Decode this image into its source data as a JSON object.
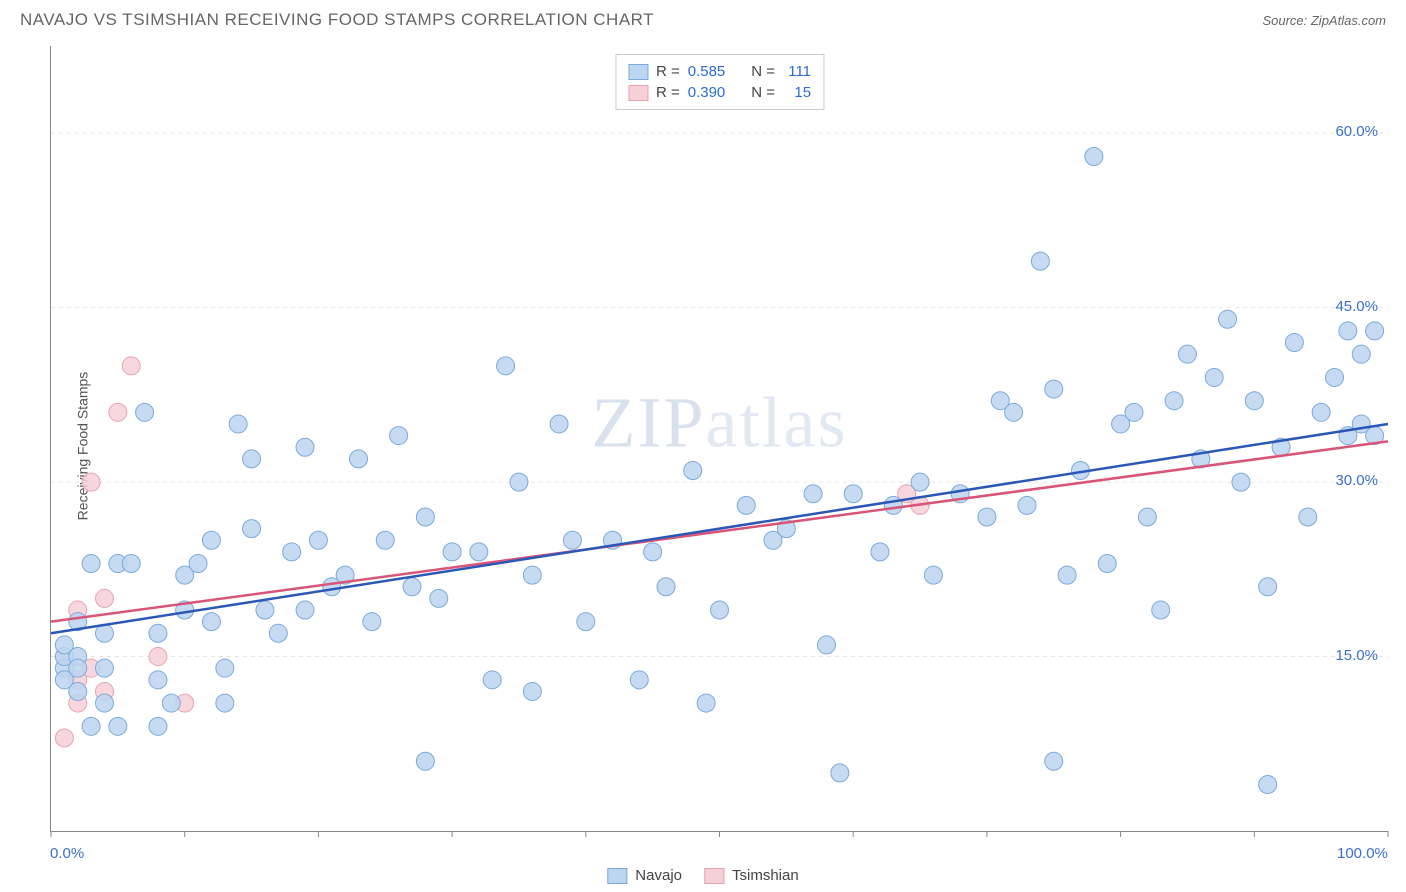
{
  "chart": {
    "type": "scatter",
    "title": "NAVAJO VS TSIMSHIAN RECEIVING FOOD STAMPS CORRELATION CHART",
    "source": "Source: ZipAtlas.com",
    "ylabel": "Receiving Food Stamps",
    "watermark": "ZIPatlas",
    "background_color": "#ffffff",
    "grid_color": "#e5e5e5",
    "axis_color": "#888888",
    "tick_label_color": "#3b6fc9",
    "xlim": [
      0,
      100
    ],
    "ylim": [
      0,
      67.5
    ],
    "xticks": [
      0,
      10,
      20,
      30,
      40,
      50,
      60,
      70,
      80,
      90,
      100
    ],
    "xtick_labels": {
      "0": "0.0%",
      "100": "100.0%"
    },
    "yticks": [
      15,
      30,
      45,
      60
    ],
    "ytick_labels": {
      "15": "15.0%",
      "30": "30.0%",
      "45": "45.0%",
      "60": "60.0%"
    },
    "marker_radius": 9,
    "marker_stroke_width": 1,
    "trend_line_width": 2.5,
    "series": [
      {
        "name": "Navajo",
        "fill": "#bcd5f0",
        "stroke": "#7da9db",
        "line_color": "#2b57b8",
        "r_value": "0.585",
        "n_value": "111",
        "trend": {
          "x1": 0,
          "y1": 17.0,
          "x2": 100,
          "y2": 35.0
        },
        "points": [
          [
            1,
            14
          ],
          [
            1,
            15
          ],
          [
            1,
            16
          ],
          [
            1,
            13
          ],
          [
            2,
            12
          ],
          [
            2,
            15
          ],
          [
            2,
            18
          ],
          [
            2,
            14
          ],
          [
            3,
            9
          ],
          [
            3,
            23
          ],
          [
            4,
            17
          ],
          [
            4,
            14
          ],
          [
            4,
            11
          ],
          [
            5,
            23
          ],
          [
            5,
            9
          ],
          [
            6,
            23
          ],
          [
            7,
            36
          ],
          [
            8,
            13
          ],
          [
            8,
            9
          ],
          [
            8,
            17
          ],
          [
            9,
            11
          ],
          [
            10,
            22
          ],
          [
            10,
            19
          ],
          [
            11,
            23
          ],
          [
            12,
            25
          ],
          [
            12,
            18
          ],
          [
            13,
            11
          ],
          [
            13,
            14
          ],
          [
            14,
            35
          ],
          [
            15,
            26
          ],
          [
            15,
            32
          ],
          [
            16,
            19
          ],
          [
            17,
            17
          ],
          [
            18,
            24
          ],
          [
            19,
            33
          ],
          [
            19,
            19
          ],
          [
            20,
            25
          ],
          [
            21,
            21
          ],
          [
            22,
            22
          ],
          [
            23,
            32
          ],
          [
            24,
            18
          ],
          [
            25,
            25
          ],
          [
            26,
            34
          ],
          [
            27,
            21
          ],
          [
            28,
            6
          ],
          [
            28,
            27
          ],
          [
            29,
            20
          ],
          [
            30,
            24
          ],
          [
            32,
            24
          ],
          [
            33,
            13
          ],
          [
            34,
            40
          ],
          [
            35,
            30
          ],
          [
            36,
            12
          ],
          [
            36,
            22
          ],
          [
            38,
            35
          ],
          [
            39,
            25
          ],
          [
            40,
            18
          ],
          [
            42,
            25
          ],
          [
            44,
            13
          ],
          [
            45,
            24
          ],
          [
            46,
            21
          ],
          [
            48,
            31
          ],
          [
            49,
            11
          ],
          [
            50,
            19
          ],
          [
            52,
            28
          ],
          [
            54,
            25
          ],
          [
            55,
            26
          ],
          [
            57,
            29
          ],
          [
            58,
            16
          ],
          [
            59,
            5
          ],
          [
            60,
            29
          ],
          [
            62,
            24
          ],
          [
            63,
            28
          ],
          [
            65,
            30
          ],
          [
            66,
            22
          ],
          [
            68,
            29
          ],
          [
            70,
            27
          ],
          [
            71,
            37
          ],
          [
            72,
            36
          ],
          [
            73,
            28
          ],
          [
            74,
            49
          ],
          [
            75,
            38
          ],
          [
            75,
            6
          ],
          [
            76,
            22
          ],
          [
            77,
            31
          ],
          [
            78,
            58
          ],
          [
            79,
            23
          ],
          [
            80,
            35
          ],
          [
            81,
            36
          ],
          [
            82,
            27
          ],
          [
            83,
            19
          ],
          [
            84,
            37
          ],
          [
            85,
            41
          ],
          [
            86,
            32
          ],
          [
            87,
            39
          ],
          [
            88,
            44
          ],
          [
            89,
            30
          ],
          [
            90,
            37
          ],
          [
            91,
            21
          ],
          [
            91,
            4
          ],
          [
            92,
            33
          ],
          [
            93,
            42
          ],
          [
            94,
            27
          ],
          [
            95,
            36
          ],
          [
            96,
            39
          ],
          [
            97,
            43
          ],
          [
            97,
            34
          ],
          [
            98,
            41
          ],
          [
            98,
            35
          ],
          [
            99,
            43
          ],
          [
            99,
            34
          ]
        ]
      },
      {
        "name": "Tsimshian",
        "fill": "#f6cfd7",
        "stroke": "#e8a3b3",
        "line_color": "#d95577",
        "r_value": "0.390",
        "n_value": "15",
        "trend": {
          "x1": 0,
          "y1": 18.0,
          "x2": 100,
          "y2": 33.5
        },
        "points": [
          [
            1,
            8
          ],
          [
            1,
            15
          ],
          [
            2,
            11
          ],
          [
            2,
            19
          ],
          [
            3,
            14
          ],
          [
            3,
            30
          ],
          [
            4,
            12
          ],
          [
            5,
            36
          ],
          [
            6,
            40
          ],
          [
            8,
            15
          ],
          [
            10,
            11
          ],
          [
            2,
            13
          ],
          [
            4,
            20
          ],
          [
            64,
            29
          ],
          [
            65,
            28
          ]
        ]
      }
    ],
    "legend_top_labels": {
      "r": "R =",
      "n": "N ="
    },
    "legend_bottom": [
      "Navajo",
      "Tsimshian"
    ]
  }
}
